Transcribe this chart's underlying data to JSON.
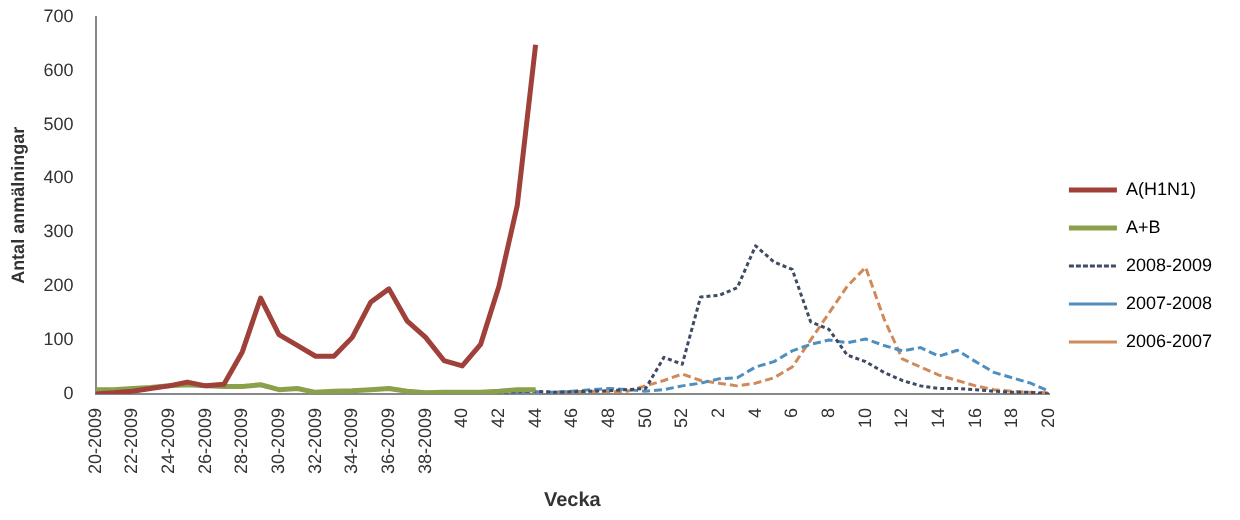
{
  "chart_data": {
    "type": "line",
    "xlabel": "Vecka",
    "ylabel": "Antal anmälningar",
    "categories": [
      "20-2009",
      null,
      "22-2009",
      null,
      "24-2009",
      null,
      "26-2009",
      null,
      "28-2009",
      null,
      "30-2009",
      null,
      "32-2009",
      null,
      "34-2009",
      null,
      "36-2009",
      null,
      "38-2009",
      null,
      "40",
      null,
      "42",
      null,
      "44",
      null,
      "46",
      null,
      "48",
      null,
      "50",
      null,
      "52",
      null,
      "2",
      null,
      "4",
      null,
      "6",
      null,
      "8",
      null,
      "10",
      null,
      "12",
      null,
      "14",
      null,
      "16",
      null,
      "18",
      null,
      "20"
    ],
    "series": [
      {
        "name": "A(H1N1)",
        "color": "#a0403a",
        "line_style": "solid",
        "values": [
          0,
          2,
          5,
          10,
          15,
          22,
          15,
          18,
          78,
          178,
          110,
          90,
          70,
          70,
          105,
          170,
          195,
          135,
          105,
          62,
          52,
          92,
          200,
          350,
          648,
          null,
          null,
          null,
          null,
          null,
          null,
          null,
          null,
          null,
          null,
          null,
          null,
          null,
          null,
          null,
          null,
          null,
          null,
          null,
          null,
          null,
          null,
          null,
          null,
          null,
          null,
          null,
          null
        ]
      },
      {
        "name": "A+B",
        "color": "#8aa04a",
        "line_style": "solid",
        "values": [
          8,
          8,
          10,
          12,
          15,
          17,
          15,
          14,
          14,
          17,
          8,
          10,
          3,
          5,
          6,
          8,
          10,
          5,
          2,
          3,
          3,
          3,
          5,
          8,
          8,
          null,
          null,
          null,
          null,
          null,
          null,
          null,
          null,
          null,
          null,
          null,
          null,
          null,
          null,
          null,
          null,
          null,
          null,
          null,
          null,
          null,
          null,
          null,
          null,
          null,
          null,
          null,
          null
        ]
      },
      {
        "name": "2008-2009",
        "color": "#3f4a63",
        "line_style": "dotted",
        "values": [
          null,
          null,
          null,
          null,
          null,
          null,
          null,
          null,
          null,
          null,
          null,
          null,
          null,
          null,
          null,
          null,
          null,
          null,
          null,
          null,
          2,
          3,
          3,
          4,
          5,
          3,
          4,
          5,
          6,
          8,
          10,
          68,
          55,
          180,
          183,
          197,
          275,
          245,
          231,
          134,
          120,
          72,
          60,
          40,
          25,
          15,
          10,
          10,
          8,
          5,
          3,
          3,
          0
        ]
      },
      {
        "name": "2007-2008",
        "color": "#4f8fbf",
        "line_style": "dashed",
        "values": [
          null,
          null,
          null,
          null,
          null,
          null,
          null,
          null,
          null,
          null,
          null,
          null,
          null,
          null,
          null,
          null,
          null,
          null,
          null,
          null,
          2,
          3,
          3,
          3,
          4,
          3,
          5,
          8,
          10,
          8,
          5,
          8,
          15,
          20,
          28,
          30,
          50,
          60,
          80,
          92,
          100,
          95,
          102,
          90,
          80,
          86,
          70,
          81,
          60,
          40,
          30,
          20,
          5
        ]
      },
      {
        "name": "2006-2007",
        "color": "#d08a5a",
        "line_style": "dashed",
        "values": [
          null,
          null,
          null,
          null,
          null,
          null,
          null,
          null,
          null,
          null,
          null,
          null,
          null,
          null,
          null,
          null,
          null,
          null,
          null,
          null,
          null,
          null,
          null,
          null,
          null,
          3,
          4,
          5,
          4,
          5,
          15,
          25,
          37,
          25,
          20,
          15,
          20,
          30,
          50,
          100,
          150,
          200,
          235,
          140,
          65,
          50,
          35,
          25,
          15,
          8,
          5,
          3,
          2
        ]
      }
    ],
    "ylim": [
      0,
      700
    ],
    "yticks": [
      0,
      100,
      200,
      300,
      400,
      500,
      600,
      700
    ],
    "grid": false,
    "legend": "right",
    "marker": "none"
  }
}
